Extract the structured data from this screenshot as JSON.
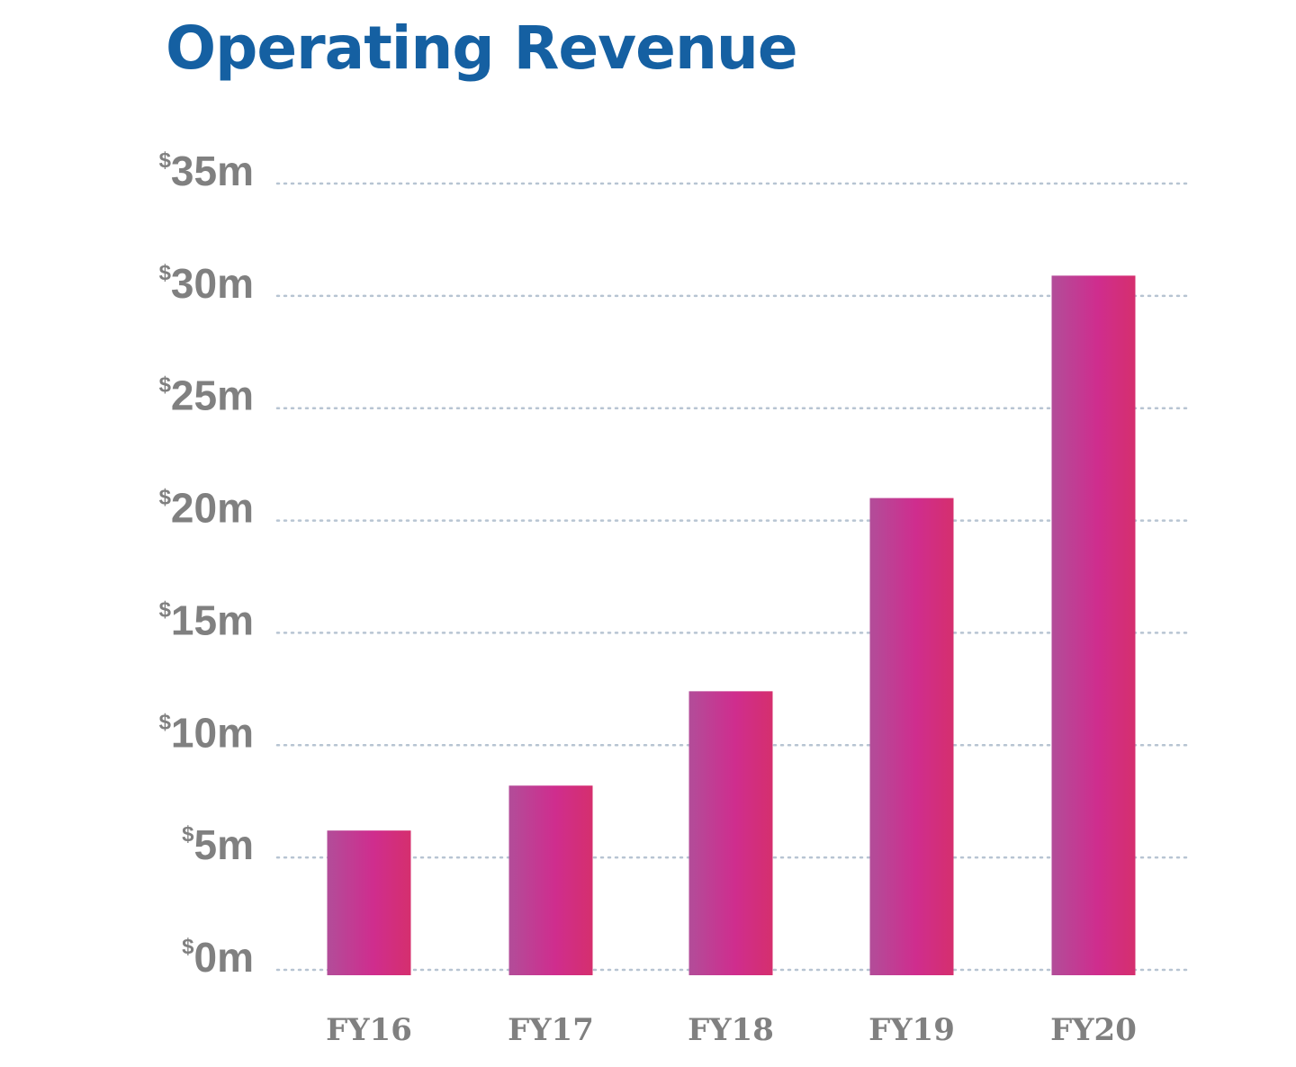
{
  "chart_data": {
    "type": "bar",
    "title": "Operating Revenue",
    "xlabel": "",
    "ylabel": "",
    "categories": [
      "FY16",
      "FY17",
      "FY18",
      "FY19",
      "FY20"
    ],
    "values": [
      6.2,
      8.2,
      12.4,
      21.0,
      30.9
    ],
    "ylim": [
      0,
      35
    ],
    "yticks": [
      {
        "value": 0,
        "currency": "$",
        "text": "0m"
      },
      {
        "value": 5,
        "currency": "$",
        "text": "5m"
      },
      {
        "value": 10,
        "currency": "$",
        "text": "10m"
      },
      {
        "value": 15,
        "currency": "$",
        "text": "15m"
      },
      {
        "value": 20,
        "currency": "$",
        "text": "20m"
      },
      {
        "value": 25,
        "currency": "$",
        "text": "25m"
      },
      {
        "value": 30,
        "currency": "$",
        "text": "30m"
      },
      {
        "value": 35,
        "currency": "$",
        "text": "35m"
      }
    ],
    "grid": true,
    "legend": "none"
  },
  "colors": {
    "title": "#1560a2",
    "tick_label": "#808080",
    "gridline": "#b7c4d2",
    "bar_left": "#b24d99",
    "bar_middle": "#cf2d8e",
    "bar_right": "#d52f6e"
  }
}
